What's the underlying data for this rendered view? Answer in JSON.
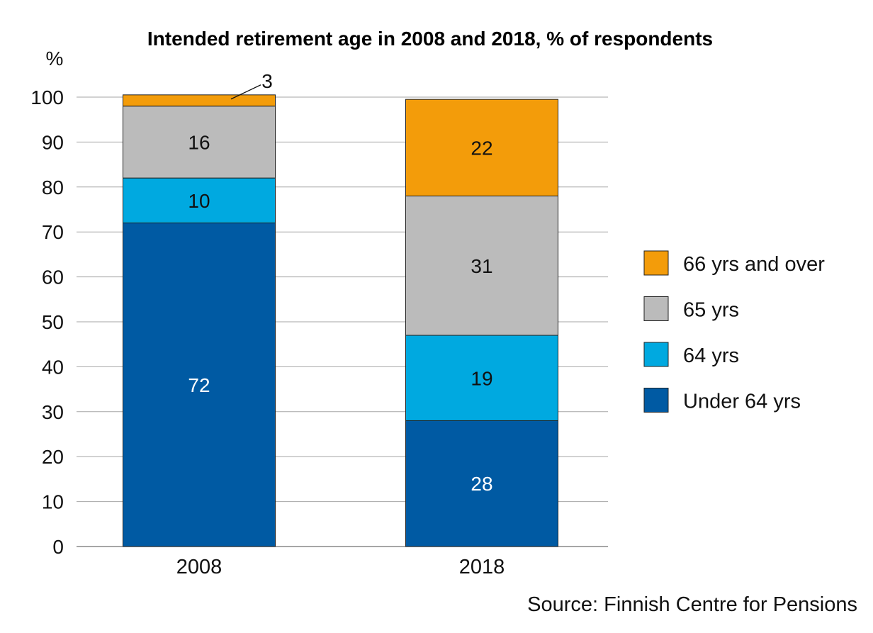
{
  "chart_data": {
    "type": "bar",
    "stacked": true,
    "title": "Intended retirement age in 2008 and 2018, % of respondents",
    "ylabel": "%",
    "xlabel": "",
    "categories": [
      "2008",
      "2018"
    ],
    "ylim": [
      0,
      100
    ],
    "yticks": [
      "0",
      "10",
      "20",
      "30",
      "40",
      "50",
      "60",
      "70",
      "80",
      "90",
      "100"
    ],
    "grid": true,
    "legend_position": "right",
    "series": [
      {
        "name": "Under 64 yrs",
        "values": [
          72,
          28
        ],
        "color": "#005AA3",
        "label_color": "#ffffff",
        "data_labels": [
          "72",
          "28"
        ]
      },
      {
        "name": "64 yrs",
        "values": [
          10,
          19
        ],
        "color": "#00A9E0",
        "label_color": "#111111",
        "data_labels": [
          "10",
          "19"
        ]
      },
      {
        "name": "65 yrs",
        "values": [
          16,
          31
        ],
        "color": "#BBBBBB",
        "label_color": "#111111",
        "data_labels": [
          "16",
          "31"
        ]
      },
      {
        "name": "66 yrs and over",
        "values": [
          2.5,
          21.5
        ],
        "color": "#F39C0A",
        "label_color": "#111111",
        "data_labels": [
          "3",
          "22"
        ]
      }
    ],
    "legend_order": [
      "66 yrs and over",
      "65 yrs",
      "64 yrs",
      "Under 64 yrs"
    ],
    "source": "Source: Finnish Centre for Pensions"
  }
}
